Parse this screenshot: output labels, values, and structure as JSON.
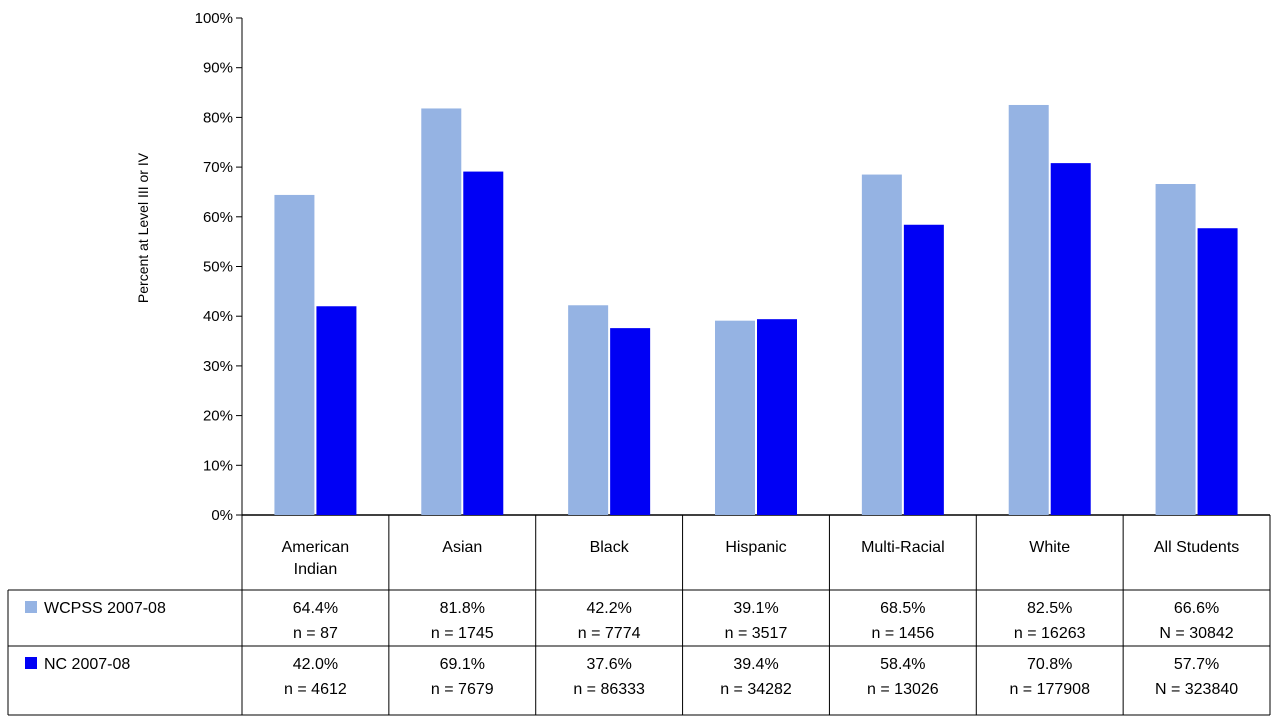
{
  "chart_data": {
    "type": "bar",
    "title": "",
    "xlabel": "",
    "ylabel": "Percent at Level III or IV",
    "ylim": [
      0,
      100
    ],
    "yticks": [
      "0%",
      "10%",
      "20%",
      "30%",
      "40%",
      "50%",
      "60%",
      "70%",
      "80%",
      "90%",
      "100%"
    ],
    "grid": false,
    "legend": "data-table-left",
    "categories": [
      [
        "American",
        "Indian"
      ],
      [
        "Asian"
      ],
      [
        "Black"
      ],
      [
        "Hispanic"
      ],
      [
        "Multi-Racial"
      ],
      [
        "White"
      ],
      [
        "All Students"
      ]
    ],
    "series": [
      {
        "name": "WCPSS 2007-08",
        "color": "#95b3e3",
        "values": [
          64.4,
          81.8,
          42.2,
          39.1,
          68.5,
          82.5,
          66.6
        ],
        "value_labels": [
          "64.4%",
          "81.8%",
          "42.2%",
          "39.1%",
          "68.5%",
          "82.5%",
          "66.6%"
        ],
        "counts": [
          "n = 87",
          "n = 1745",
          "n = 7774",
          "n = 3517",
          "n = 1456",
          "n = 16263",
          "N = 30842"
        ]
      },
      {
        "name": "NC 2007-08",
        "color": "#0000f5",
        "values": [
          42.0,
          69.1,
          37.6,
          39.4,
          58.4,
          70.8,
          57.7
        ],
        "value_labels": [
          "42.0%",
          "69.1%",
          "37.6%",
          "39.4%",
          "58.4%",
          "70.8%",
          "57.7%"
        ],
        "counts": [
          "n = 4612",
          "n = 7679",
          "n = 86333",
          "n = 34282",
          "n = 13026",
          "n = 177908",
          "N = 323840"
        ]
      }
    ]
  }
}
